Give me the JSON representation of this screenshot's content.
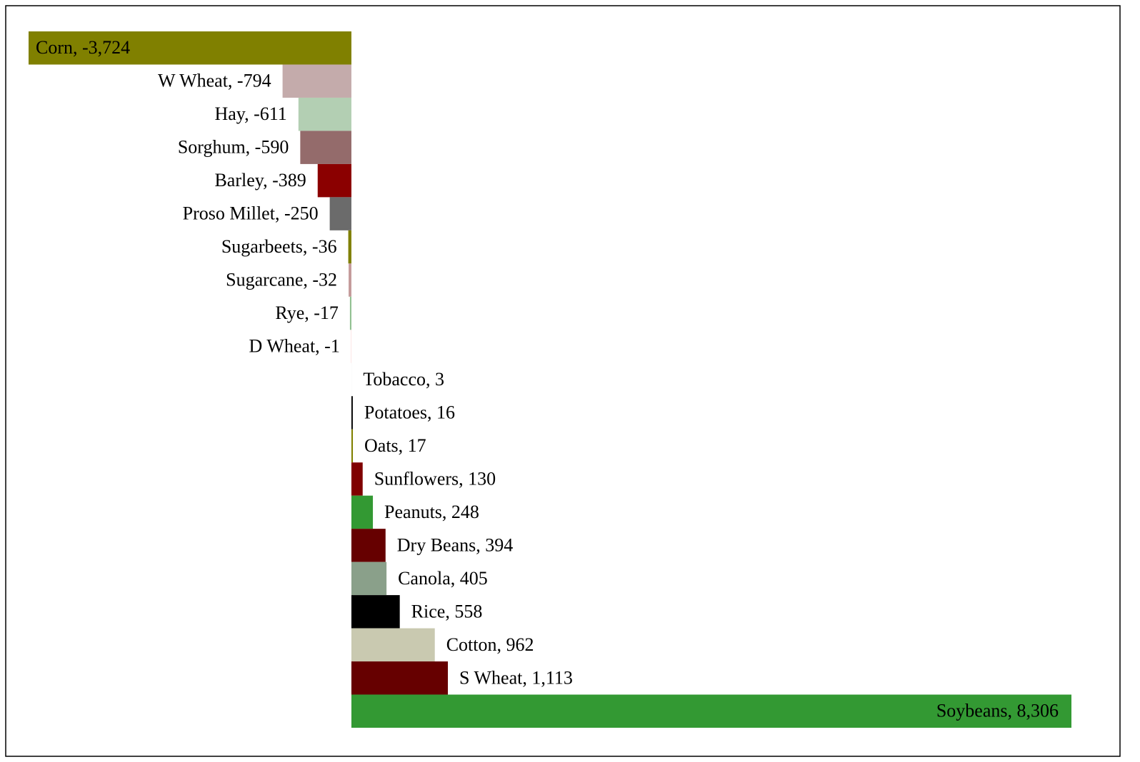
{
  "chart_data": {
    "type": "bar",
    "orientation": "horizontal",
    "values": [
      -3724,
      -794,
      -611,
      -590,
      -389,
      -250,
      -36,
      -32,
      -17,
      -1,
      3,
      16,
      17,
      130,
      248,
      394,
      405,
      558,
      962,
      1113,
      8306
    ],
    "value_labels": [
      "Corn, -3,724",
      "W Wheat, -794",
      "Hay, -611",
      "Sorghum, -590",
      "Barley, -389",
      "Proso Millet, -250",
      "Sugarbeets, -36",
      "Sugarcane, -32",
      "Rye, -17",
      "D Wheat, -1",
      "Tobacco, 3",
      "Potatoes, 16",
      "Oats, 17",
      "Sunflowers, 130",
      "Peanuts, 248",
      "Dry Beans, 394",
      "Canola, 405",
      "Rice, 558",
      "Cotton, 962",
      "S Wheat, 1,113",
      "Soybeans, 8,306"
    ],
    "colors": [
      "#808000",
      "#c4abab",
      "#b3cfb3",
      "#946b6b",
      "#8b0000",
      "#6b6b6b",
      "#808000",
      "#c49a9a",
      "#90c090",
      "#e03030",
      "#f4f4f4",
      "#000000",
      "#808000",
      "#800000",
      "#339933",
      "#660000",
      "#8aa08a",
      "#000000",
      "#c9c9b0",
      "#660000",
      "#339933"
    ]
  }
}
